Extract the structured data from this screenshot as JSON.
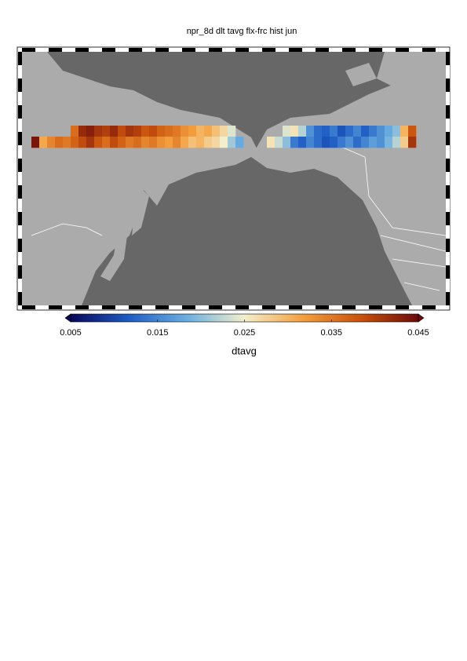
{
  "chart_data": {
    "type": "heatmap",
    "title": "npr_8d dlt tavg flx-frc hist jun",
    "colorbar_label": "dtavg",
    "clim": [
      0.005,
      0.045
    ],
    "cticks": [
      0.005,
      0.015,
      0.025,
      0.035,
      0.045
    ],
    "colormap": [
      "#08085a",
      "#1f5cc4",
      "#6aaee0",
      "#f3efcc",
      "#f4a03f",
      "#c9520c",
      "#6b0b0b"
    ],
    "west_swath": [
      [
        null,
        null,
        null,
        null,
        null,
        0.036,
        0.042,
        0.043,
        0.041,
        0.04,
        0.042,
        0.039,
        0.041,
        0.04,
        0.038,
        0.039,
        0.037,
        0.036,
        0.035,
        0.033,
        0.032,
        0.03,
        0.031,
        0.029,
        0.027,
        0.024,
        null
      ],
      [
        0.044,
        0.031,
        0.034,
        0.036,
        0.035,
        0.037,
        0.039,
        0.041,
        0.038,
        0.036,
        0.039,
        0.037,
        0.035,
        0.036,
        0.034,
        0.035,
        0.033,
        0.032,
        0.034,
        0.031,
        0.029,
        0.03,
        0.028,
        0.027,
        0.025,
        0.021,
        0.018
      ]
    ],
    "east_swath": [
      [
        null,
        null,
        0.024,
        0.026,
        0.022,
        0.016,
        0.013,
        0.012,
        0.014,
        0.011,
        0.013,
        0.015,
        0.012,
        0.014,
        0.016,
        0.018,
        0.02,
        0.03,
        0.038
      ],
      [
        0.026,
        0.023,
        0.02,
        0.014,
        0.012,
        0.015,
        0.013,
        0.011,
        0.012,
        0.014,
        0.016,
        0.013,
        0.015,
        0.017,
        0.016,
        0.019,
        0.022,
        0.028,
        0.041
      ]
    ]
  }
}
